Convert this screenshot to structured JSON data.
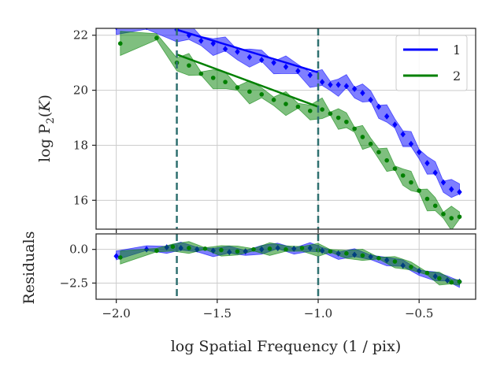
{
  "chart_data": {
    "type": "line",
    "xlabel": "log Spatial Frequency (1 / pix)",
    "top_panel": {
      "ylabel": "log P",
      "ylabel_sub": "2",
      "ylabel_arg": "K",
      "xlim": [
        -2.1,
        -0.22
      ],
      "ylim": [
        14.95,
        22.25
      ],
      "yticks": [
        16,
        18,
        20,
        22
      ],
      "ytick_labels": [
        "16",
        "18",
        "20",
        "22"
      ],
      "legend": [
        {
          "label": "1",
          "color": "#0000ff"
        },
        {
          "label": "2",
          "color": "#008000"
        }
      ],
      "series": [
        {
          "name": "1",
          "color": "#0000ff",
          "band_halfwidth": 0.45,
          "fit_line": {
            "x": [
              -1.7,
              -1.0
            ],
            "y": [
              22.2,
              20.65
            ]
          },
          "points_x": [
            -2.0,
            -1.85,
            -1.7,
            -1.64,
            -1.58,
            -1.52,
            -1.46,
            -1.4,
            -1.34,
            -1.28,
            -1.22,
            -1.16,
            -1.1,
            -1.04,
            -0.98,
            -0.94,
            -0.9,
            -0.86,
            -0.82,
            -0.78,
            -0.74,
            -0.7,
            -0.66,
            -0.62,
            -0.58,
            -0.54,
            -0.5,
            -0.46,
            -0.42,
            -0.38,
            -0.34,
            -0.3
          ],
          "points_y": [
            22.3,
            22.3,
            22.2,
            22.0,
            21.8,
            21.7,
            21.5,
            21.4,
            21.2,
            21.1,
            21.0,
            20.85,
            20.7,
            20.55,
            20.3,
            20.2,
            20.2,
            20.15,
            20.05,
            19.9,
            19.65,
            19.4,
            19.05,
            18.75,
            18.4,
            18.05,
            17.75,
            17.35,
            17.0,
            16.65,
            16.4,
            16.3
          ]
        },
        {
          "name": "2",
          "color": "#008000",
          "band_halfwidth": 0.45,
          "fit_line": {
            "x": [
              -1.7,
              -1.0
            ],
            "y": [
              21.3,
              19.4
            ]
          },
          "points_x": [
            -1.98,
            -1.8,
            -1.7,
            -1.64,
            -1.58,
            -1.52,
            -1.46,
            -1.4,
            -1.34,
            -1.28,
            -1.22,
            -1.16,
            -1.1,
            -1.04,
            -0.98,
            -0.94,
            -0.9,
            -0.86,
            -0.82,
            -0.78,
            -0.74,
            -0.7,
            -0.66,
            -0.62,
            -0.58,
            -0.54,
            -0.5,
            -0.46,
            -0.42,
            -0.38,
            -0.34,
            -0.3
          ],
          "points_y": [
            21.7,
            21.9,
            21.0,
            20.9,
            20.6,
            20.45,
            20.3,
            20.1,
            19.95,
            19.85,
            19.65,
            19.5,
            19.4,
            19.25,
            19.3,
            19.15,
            19.0,
            18.85,
            18.6,
            18.3,
            18.05,
            17.75,
            17.45,
            17.15,
            16.9,
            16.65,
            16.35,
            16.05,
            15.8,
            15.5,
            15.35,
            15.4
          ]
        }
      ],
      "vlines_x": [
        -1.7,
        -1.0
      ]
    },
    "bottom_panel": {
      "ylabel": "Residuals",
      "xlim": [
        -2.1,
        -0.22
      ],
      "ylim": [
        -3.7,
        1.15
      ],
      "yticks": [
        0.0,
        -2.5
      ],
      "ytick_labels": [
        "0.0",
        "−2.5"
      ],
      "xticks": [
        -2.0,
        -1.5,
        -1.0,
        -0.5
      ],
      "xtick_labels": [
        "−2.0",
        "−1.5",
        "−1.0",
        "−0.5"
      ],
      "series": [
        {
          "name": "1",
          "color": "#0000ff",
          "band_halfwidth": 0.45,
          "points_x": [
            -2.0,
            -1.85,
            -1.75,
            -1.68,
            -1.6,
            -1.52,
            -1.44,
            -1.36,
            -1.28,
            -1.2,
            -1.12,
            -1.04,
            -0.98,
            -0.9,
            -0.82,
            -0.74,
            -0.66,
            -0.58,
            -0.5,
            -0.42,
            -0.36,
            -0.3
          ],
          "points_y": [
            -0.5,
            0.0,
            0.15,
            0.1,
            0.0,
            -0.1,
            -0.2,
            -0.15,
            0.0,
            0.1,
            0.05,
            0.1,
            -0.1,
            -0.3,
            -0.4,
            -0.55,
            -0.8,
            -1.2,
            -1.6,
            -2.0,
            -2.3,
            -2.4
          ]
        },
        {
          "name": "2",
          "color": "#008000",
          "band_halfwidth": 0.5,
          "points_x": [
            -1.98,
            -1.8,
            -1.72,
            -1.64,
            -1.56,
            -1.48,
            -1.4,
            -1.32,
            -1.24,
            -1.16,
            -1.08,
            -1.0,
            -0.94,
            -0.86,
            -0.78,
            -0.7,
            -0.62,
            -0.54,
            -0.46,
            -0.4,
            -0.34,
            -0.3
          ],
          "points_y": [
            -0.6,
            -0.1,
            0.2,
            0.1,
            0.05,
            -0.05,
            -0.15,
            0.0,
            0.05,
            0.0,
            0.1,
            -0.05,
            -0.15,
            -0.3,
            -0.45,
            -0.65,
            -0.9,
            -1.3,
            -1.75,
            -2.15,
            -2.45,
            -2.4
          ]
        }
      ],
      "vlines_x": [
        -1.7,
        -1.0
      ]
    }
  }
}
